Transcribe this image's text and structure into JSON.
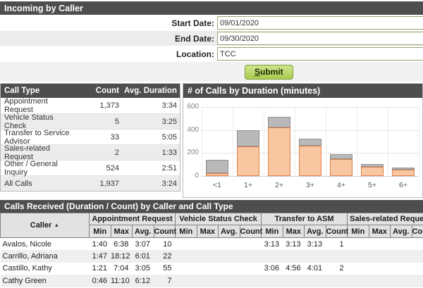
{
  "window": {
    "title": "Incoming by Caller"
  },
  "form": {
    "fields": [
      {
        "label": "Start Date:",
        "value": "09/01/2020"
      },
      {
        "label": "End Date:",
        "value": "09/30/2020"
      },
      {
        "label": "Location:",
        "value": "TCC"
      }
    ],
    "submit_label": "Submit"
  },
  "call_type_table": {
    "headers": {
      "type": "Call Type",
      "count": "Count",
      "avg": "Avg. Duration"
    },
    "rows": [
      {
        "type": "Appointment Request",
        "count": "1,373",
        "avg": "3:34"
      },
      {
        "type": "Vehicle Status Check",
        "count": "5",
        "avg": "3:25"
      },
      {
        "type": "Transfer to Service Advisor",
        "count": "33",
        "avg": "5:05"
      },
      {
        "type": "Sales-related Request",
        "count": "2",
        "avg": "1:33"
      },
      {
        "type": "Other / General Inquiry",
        "count": "524",
        "avg": "2:51"
      },
      {
        "type": "All Calls",
        "count": "1,937",
        "avg": "3:24"
      }
    ]
  },
  "chart_data": {
    "type": "bar",
    "stacked": true,
    "title": "# of Calls by Duration (minutes)",
    "categories": [
      "<1",
      "1+",
      "2+",
      "3+",
      "4+",
      "5+",
      "6+"
    ],
    "series": [
      {
        "name": "primary-segment",
        "color": "#f9c6a2",
        "border": "#e0824a",
        "values": [
          25,
          260,
          425,
          265,
          145,
          80,
          55
        ]
      },
      {
        "name": "secondary-segment",
        "color": "#b9b9b9",
        "border": "#8f8f8f",
        "values": [
          115,
          140,
          88,
          60,
          45,
          25,
          20
        ]
      }
    ],
    "xlabel": "",
    "ylabel": "",
    "ylim": [
      0,
      600
    ],
    "yticks": [
      0,
      200,
      400,
      600
    ],
    "grid": true,
    "legend": false
  },
  "callers_table": {
    "title": "Calls Received (Duration / Count) by Caller and Call Type",
    "caller_header": "Caller",
    "sort_indicator": "▲",
    "groups": [
      "Appointment Request",
      "Vehicle Status Check",
      "Transfer to ASM",
      "Sales-related Request"
    ],
    "sub_headers": [
      "Min",
      "Max",
      "Avg.",
      "Count"
    ],
    "rows": [
      {
        "caller": "Avalos, Nicole",
        "values": [
          "1:40",
          "6:38",
          "3:07",
          "10",
          "",
          "",
          "",
          "",
          "3:13",
          "3:13",
          "3:13",
          "1",
          "",
          "",
          "",
          ""
        ]
      },
      {
        "caller": "Carrillo, Adriana",
        "values": [
          "1:47",
          "18:12",
          "6:01",
          "22",
          "",
          "",
          "",
          "",
          "",
          "",
          "",
          "",
          "",
          "",
          "",
          ""
        ]
      },
      {
        "caller": "Castillo, Kathy",
        "values": [
          "1:21",
          "7:04",
          "3:05",
          "55",
          "",
          "",
          "",
          "",
          "3:06",
          "4:56",
          "4:01",
          "2",
          "",
          "",
          "",
          ""
        ]
      },
      {
        "caller": "Cathy Green",
        "values": [
          "0:46",
          "11:10",
          "6:12",
          "7",
          "",
          "",
          "",
          "",
          "",
          "",
          "",
          "",
          "",
          "",
          "",
          ""
        ]
      }
    ]
  },
  "colors": {
    "header_bar": "#4e4e4e",
    "row_stripe": "#ececec",
    "submit_green": "#a8cd50",
    "input_border": "#9ba26f"
  }
}
